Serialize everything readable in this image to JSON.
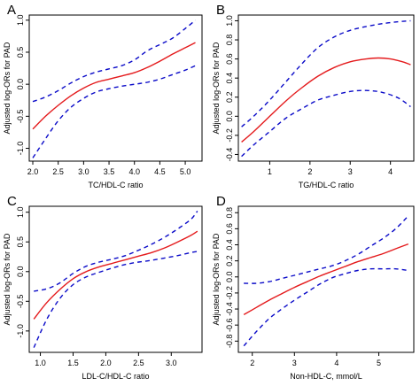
{
  "colors": {
    "fit": "#e41a1c",
    "ci": "#0a0ac8",
    "axis": "#000000"
  },
  "chart_data": [
    {
      "type": "line",
      "panel_label": "A",
      "xlabel": "TC/HDL-C ratio",
      "ylabel": "Adjusted log-ORs for PAD",
      "xlim": [
        1.93,
        5.33
      ],
      "ylim": [
        -1.2,
        1.08
      ],
      "xticks": [
        2.0,
        2.5,
        3.0,
        3.5,
        4.0,
        4.5,
        5.0
      ],
      "xtick_labels": [
        "2.0",
        "2.5",
        "3.0",
        "3.5",
        "4.0",
        "4.5",
        "5.0"
      ],
      "yticks": [
        -1.0,
        -0.5,
        0.0,
        0.5,
        1.0
      ],
      "ytick_labels": [
        "-1.0",
        "-0.5",
        "0.0",
        "0.5",
        "1.0"
      ],
      "grid": false,
      "series": [
        {
          "style": "fit",
          "x": [
            2.0,
            2.25,
            2.5,
            2.75,
            3.0,
            3.25,
            3.5,
            3.75,
            4.0,
            4.25,
            4.5,
            4.75,
            5.0,
            5.2
          ],
          "y": [
            -0.7,
            -0.5,
            -0.33,
            -0.18,
            -0.06,
            0.03,
            0.08,
            0.13,
            0.18,
            0.26,
            0.36,
            0.47,
            0.57,
            0.65
          ]
        },
        {
          "style": "ci",
          "x": [
            2.0,
            2.25,
            2.5,
            2.75,
            3.0,
            3.25,
            3.5,
            3.75,
            4.0,
            4.25,
            4.5,
            4.75,
            5.0,
            5.2
          ],
          "y": [
            -0.27,
            -0.2,
            -0.1,
            0.02,
            0.12,
            0.19,
            0.24,
            0.29,
            0.38,
            0.52,
            0.62,
            0.72,
            0.87,
            1.0
          ]
        },
        {
          "style": "ci",
          "x": [
            2.0,
            2.25,
            2.5,
            2.75,
            3.0,
            3.25,
            3.5,
            3.75,
            4.0,
            4.25,
            4.5,
            4.75,
            5.0,
            5.2
          ],
          "y": [
            -1.15,
            -0.85,
            -0.57,
            -0.36,
            -0.22,
            -0.12,
            -0.07,
            -0.03,
            0.0,
            0.03,
            0.08,
            0.15,
            0.22,
            0.29
          ]
        }
      ]
    },
    {
      "type": "line",
      "panel_label": "B",
      "xlabel": "TG/HDL-C ratio",
      "ylabel": "Adjusted log-ORs for PAD",
      "xlim": [
        0.22,
        4.58
      ],
      "ylim": [
        -0.47,
        1.06
      ],
      "xticks": [
        1,
        2,
        3,
        4
      ],
      "xtick_labels": [
        "1",
        "2",
        "3",
        "4"
      ],
      "yticks": [
        -0.4,
        -0.2,
        0.0,
        0.2,
        0.4,
        0.6,
        0.8,
        1.0
      ],
      "ytick_labels": [
        "-0.4",
        "-0.2",
        "0.0",
        "0.2",
        "0.4",
        "0.6",
        "0.8",
        "1.0"
      ],
      "grid": false,
      "series": [
        {
          "style": "fit",
          "x": [
            0.3,
            0.6,
            1.0,
            1.4,
            1.8,
            2.2,
            2.6,
            3.0,
            3.4,
            3.7,
            4.0,
            4.3,
            4.5
          ],
          "y": [
            -0.27,
            -0.16,
            0.0,
            0.16,
            0.3,
            0.42,
            0.51,
            0.57,
            0.6,
            0.61,
            0.6,
            0.57,
            0.54
          ]
        },
        {
          "style": "ci",
          "x": [
            0.3,
            0.6,
            1.0,
            1.4,
            1.8,
            2.2,
            2.6,
            3.0,
            3.4,
            3.8,
            4.2,
            4.5
          ],
          "y": [
            -0.11,
            0.0,
            0.17,
            0.36,
            0.55,
            0.72,
            0.83,
            0.9,
            0.94,
            0.97,
            0.99,
            1.0
          ]
        },
        {
          "style": "ci",
          "x": [
            0.3,
            0.6,
            1.0,
            1.4,
            1.8,
            2.2,
            2.6,
            3.0,
            3.4,
            3.8,
            4.2,
            4.5
          ],
          "y": [
            -0.42,
            -0.3,
            -0.16,
            -0.02,
            0.08,
            0.17,
            0.22,
            0.26,
            0.27,
            0.25,
            0.19,
            0.1
          ]
        }
      ]
    },
    {
      "type": "line",
      "panel_label": "C",
      "xlabel": "LDL-C/HDL-C ratio",
      "ylabel": "Adjusted log-ORs for PAD",
      "xlim": [
        0.83,
        3.47
      ],
      "ylim": [
        -1.36,
        1.1
      ],
      "xticks": [
        1.0,
        1.5,
        2.0,
        2.5,
        3.0
      ],
      "xtick_labels": [
        "1.0",
        "1.5",
        "2.0",
        "2.5",
        "3.0"
      ],
      "yticks": [
        -1.0,
        -0.5,
        0.0,
        0.5,
        1.0
      ],
      "ytick_labels": [
        "-1.0",
        "-0.5",
        "0.0",
        "0.5",
        "1.0"
      ],
      "grid": false,
      "series": [
        {
          "style": "fit",
          "x": [
            0.9,
            1.1,
            1.3,
            1.5,
            1.7,
            1.9,
            2.1,
            2.3,
            2.5,
            2.7,
            2.9,
            3.1,
            3.3,
            3.4
          ],
          "y": [
            -0.8,
            -0.52,
            -0.3,
            -0.12,
            0.0,
            0.08,
            0.14,
            0.2,
            0.26,
            0.32,
            0.4,
            0.5,
            0.61,
            0.68
          ]
        },
        {
          "style": "ci",
          "x": [
            0.9,
            1.1,
            1.3,
            1.5,
            1.7,
            1.9,
            2.1,
            2.3,
            2.5,
            2.7,
            2.9,
            3.1,
            3.3,
            3.4
          ],
          "y": [
            -0.33,
            -0.29,
            -0.19,
            -0.03,
            0.09,
            0.16,
            0.21,
            0.27,
            0.36,
            0.46,
            0.58,
            0.72,
            0.88,
            1.02
          ]
        },
        {
          "style": "ci",
          "x": [
            0.9,
            1.1,
            1.3,
            1.5,
            1.7,
            1.9,
            2.1,
            2.3,
            2.5,
            2.7,
            2.9,
            3.1,
            3.3,
            3.4
          ],
          "y": [
            -1.28,
            -0.8,
            -0.45,
            -0.22,
            -0.09,
            -0.01,
            0.06,
            0.12,
            0.16,
            0.19,
            0.23,
            0.27,
            0.32,
            0.34
          ]
        }
      ]
    },
    {
      "type": "line",
      "panel_label": "D",
      "xlabel": "Non-HDL-C, mmol/L",
      "ylabel": "Adjusted log-ORs for PAD",
      "xlim": [
        1.67,
        5.83
      ],
      "ylim": [
        -0.94,
        0.88
      ],
      "xticks": [
        2,
        3,
        4,
        5
      ],
      "xtick_labels": [
        "2",
        "3",
        "4",
        "5"
      ],
      "yticks": [
        -0.8,
        -0.6,
        -0.4,
        -0.2,
        0.0,
        0.2,
        0.4,
        0.6,
        0.8
      ],
      "ytick_labels": [
        "-0.8",
        "-0.6",
        "-0.4",
        "-0.2",
        "0.0",
        "0.2",
        "0.4",
        "0.6",
        "0.8"
      ],
      "grid": false,
      "series": [
        {
          "style": "fit",
          "x": [
            1.8,
            2.1,
            2.4,
            2.7,
            3.0,
            3.3,
            3.6,
            3.9,
            4.2,
            4.5,
            4.8,
            5.1,
            5.4,
            5.7
          ],
          "y": [
            -0.47,
            -0.38,
            -0.29,
            -0.21,
            -0.13,
            -0.06,
            0.01,
            0.07,
            0.13,
            0.19,
            0.24,
            0.29,
            0.35,
            0.41
          ]
        },
        {
          "style": "ci",
          "x": [
            1.8,
            2.1,
            2.4,
            2.7,
            3.0,
            3.3,
            3.6,
            3.9,
            4.2,
            4.5,
            4.8,
            5.1,
            5.4,
            5.7
          ],
          "y": [
            -0.08,
            -0.08,
            -0.06,
            -0.02,
            0.02,
            0.06,
            0.1,
            0.14,
            0.2,
            0.28,
            0.38,
            0.48,
            0.6,
            0.76
          ]
        },
        {
          "style": "ci",
          "x": [
            1.8,
            2.1,
            2.4,
            2.7,
            3.0,
            3.3,
            3.6,
            3.9,
            4.2,
            4.5,
            4.8,
            5.1,
            5.4,
            5.7
          ],
          "y": [
            -0.86,
            -0.68,
            -0.52,
            -0.4,
            -0.29,
            -0.19,
            -0.09,
            -0.01,
            0.04,
            0.08,
            0.1,
            0.1,
            0.1,
            0.08
          ]
        }
      ]
    }
  ]
}
